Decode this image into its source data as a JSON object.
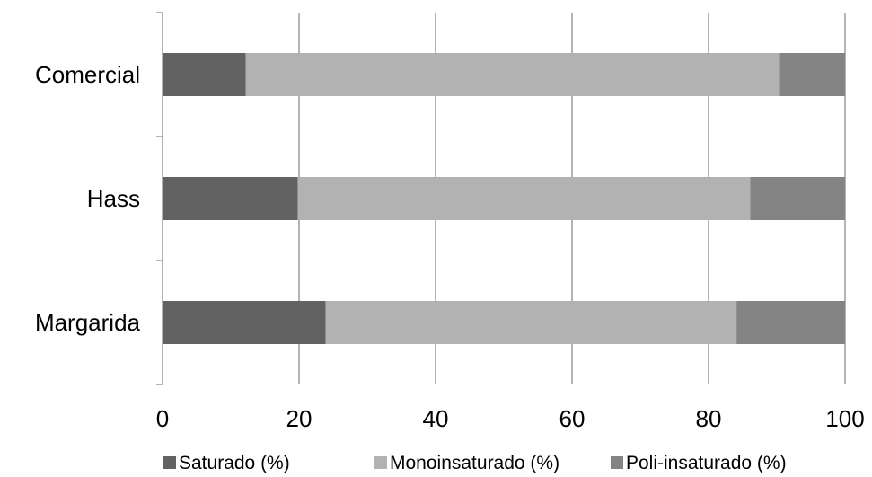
{
  "chart_data": {
    "type": "bar",
    "orientation": "horizontal",
    "stacked": true,
    "categories": [
      "Comercial",
      "Hass",
      "Margarida"
    ],
    "series": [
      {
        "name": "Saturado (%)",
        "values": [
          12.2,
          19.8,
          23.9
        ],
        "color": "#626262"
      },
      {
        "name": "Monoinsaturado (%)",
        "values": [
          78.1,
          66.3,
          60.2
        ],
        "color": "#b2b2b2"
      },
      {
        "name": "Poli-insaturado (%)",
        "values": [
          9.7,
          13.9,
          15.9
        ],
        "color": "#848484"
      }
    ],
    "xlim": [
      0,
      100
    ],
    "xticks": [
      0,
      20,
      40,
      60,
      80,
      100
    ],
    "xtick_labels": [
      "0",
      "20",
      "40",
      "60",
      "80",
      "100"
    ],
    "grid": true,
    "legend_position": "bottom",
    "title": "",
    "xlabel": "",
    "ylabel": ""
  }
}
